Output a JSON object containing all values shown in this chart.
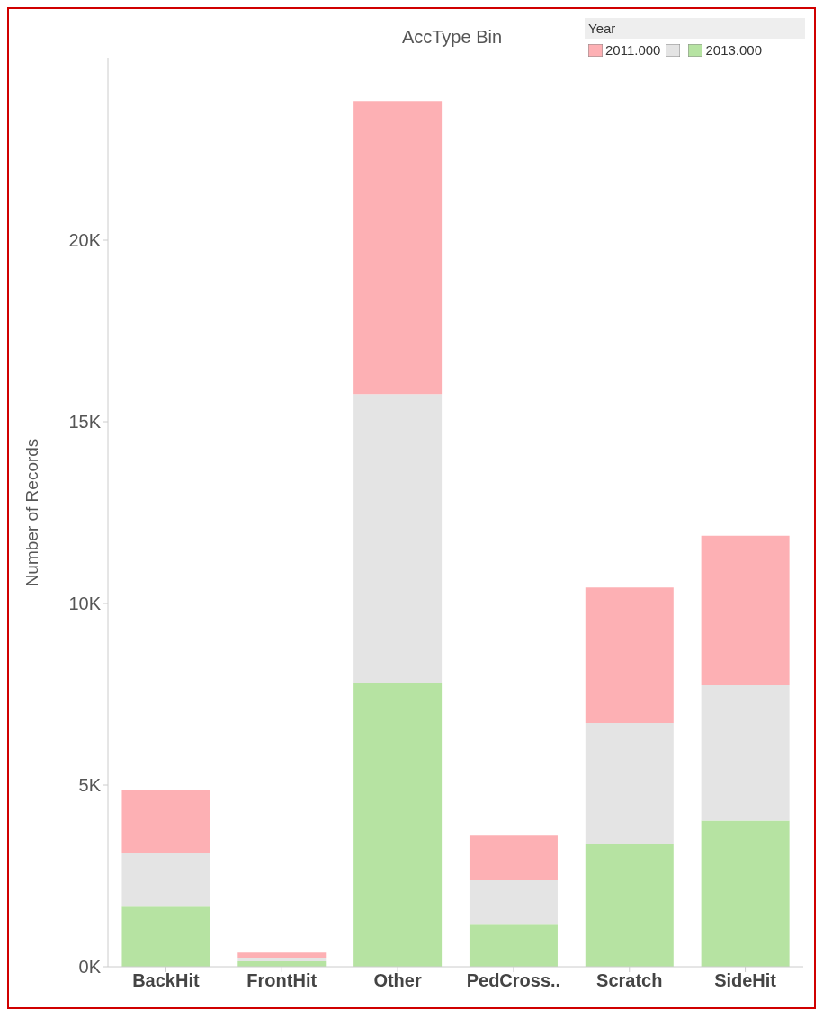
{
  "chart_data": {
    "type": "bar",
    "title": "AccType Bin",
    "ylabel": "Number of Records",
    "legend_title": "Year",
    "categories": [
      "BackHit",
      "FrontHit",
      "Other",
      "PedCross..",
      "Scratch",
      "SideHit"
    ],
    "stacked": true,
    "series": [
      {
        "name": "2013.000",
        "color": "#b6e3a2",
        "values": [
          1650,
          150,
          7800,
          1160,
          3390,
          4020
        ]
      },
      {
        "color": "#e4e4e4",
        "values": [
          1470,
          100,
          7960,
          1240,
          3320,
          3730
        ]
      },
      {
        "name": "2011.000",
        "color": "#fdb0b4",
        "values": [
          1750,
          140,
          8070,
          1210,
          3730,
          4110
        ]
      }
    ],
    "ylim": [
      0,
      25000
    ],
    "yticks": [
      {
        "value": 0,
        "label": "0K"
      },
      {
        "value": 5000,
        "label": "5K"
      },
      {
        "value": 10000,
        "label": "10K"
      },
      {
        "value": 15000,
        "label": "15K"
      },
      {
        "value": 20000,
        "label": "20K"
      }
    ],
    "grid": false,
    "legend": "top right"
  }
}
